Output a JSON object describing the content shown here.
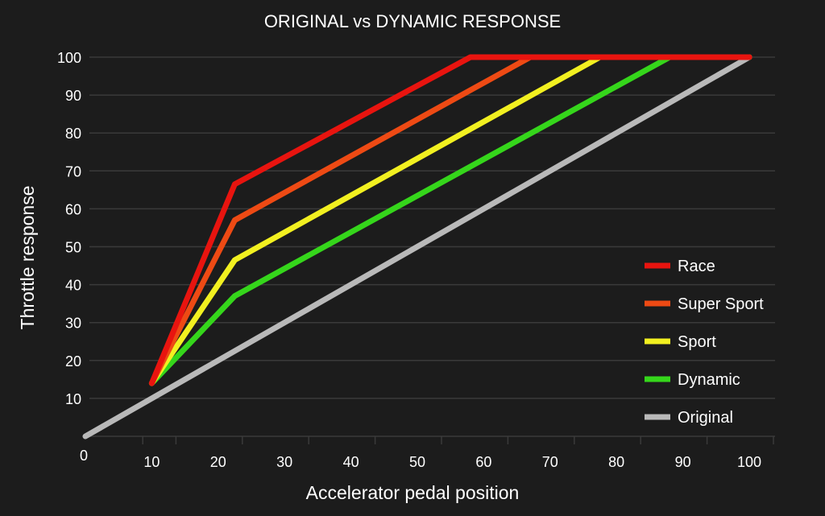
{
  "chart_data": {
    "type": "line",
    "title": "ORIGINAL vs DYNAMIC RESPONSE",
    "xlabel": "Accelerator pedal position",
    "ylabel": "Throttle response",
    "xlim": [
      0,
      100
    ],
    "ylim": [
      0,
      100
    ],
    "x_ticks": [
      10,
      20,
      30,
      40,
      50,
      60,
      70,
      80,
      90,
      100
    ],
    "y_ticks": [
      10,
      20,
      30,
      40,
      50,
      60,
      70,
      80,
      90,
      100
    ],
    "origin_label": "0",
    "grid": true,
    "legend_position": "right",
    "series": [
      {
        "name": "Race",
        "color": "#e8140f",
        "x": [
          10,
          22.5,
          58,
          100
        ],
        "y": [
          14,
          66.5,
          100,
          100
        ]
      },
      {
        "name": "Super Sport",
        "color": "#ee4a14",
        "x": [
          10,
          22.5,
          67,
          100
        ],
        "y": [
          14,
          57,
          100,
          100
        ]
      },
      {
        "name": "Sport",
        "color": "#f2f020",
        "x": [
          10,
          22.5,
          77.5,
          100
        ],
        "y": [
          14,
          46.5,
          100,
          100
        ]
      },
      {
        "name": "Dynamic",
        "color": "#35d61b",
        "x": [
          10,
          22.5,
          88,
          100
        ],
        "y": [
          14,
          37,
          100,
          100
        ]
      },
      {
        "name": "Original",
        "color": "#b9b9b9",
        "x": [
          0,
          100
        ],
        "y": [
          0,
          100
        ]
      }
    ]
  }
}
